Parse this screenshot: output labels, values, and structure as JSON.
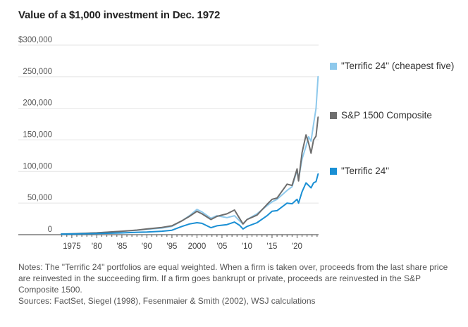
{
  "chart_data": {
    "type": "line",
    "title": "Value of a $1,000 investment in Dec. 1972",
    "xlabel": "",
    "ylabel": "",
    "xlim": [
      1972.9,
      2024.3
    ],
    "ylim": [
      0,
      300000
    ],
    "grid": true,
    "legend_position": "right",
    "y_ticks": [
      {
        "value": 0,
        "label": "0"
      },
      {
        "value": 50000,
        "label": "50,000"
      },
      {
        "value": 100000,
        "label": "100,000"
      },
      {
        "value": 150000,
        "label": "150,000"
      },
      {
        "value": 200000,
        "label": "200,000"
      },
      {
        "value": 250000,
        "label": "250,000"
      },
      {
        "value": 300000,
        "label": "$300,000"
      }
    ],
    "x_ticks": [
      {
        "value": 1975,
        "label": "1975"
      },
      {
        "value": 1980,
        "label": "'80"
      },
      {
        "value": 1985,
        "label": "'85"
      },
      {
        "value": 1990,
        "label": "'90"
      },
      {
        "value": 1995,
        "label": "'95"
      },
      {
        "value": 2000,
        "label": "2000"
      },
      {
        "value": 2005,
        "label": "'05"
      },
      {
        "value": 2010,
        "label": "'10"
      },
      {
        "value": 2015,
        "label": "'15"
      },
      {
        "value": 2020,
        "label": "'20"
      }
    ],
    "series": [
      {
        "name": "\"Terrific 24\" (cheapest five)",
        "color": "#8ec9ec",
        "x": [
          1972.9,
          1975,
          1980,
          1985,
          1988,
          1990,
          1993,
          1995,
          1997,
          1998.5,
          2000,
          2001,
          2002.8,
          2004,
          2006,
          2007.5,
          2008.5,
          2009.2,
          2010,
          2012,
          2014,
          2015,
          2016,
          2018,
          2019,
          2020,
          2020.3,
          2021,
          2021.8,
          2022.3,
          2022.8,
          2023.3,
          2023.8,
          2024.2
        ],
        "values": [
          1000,
          1400,
          2800,
          5200,
          7000,
          8500,
          10500,
          13000,
          22000,
          30000,
          40000,
          36000,
          26000,
          30000,
          27000,
          30000,
          22000,
          17000,
          24000,
          33000,
          46000,
          52000,
          56000,
          70000,
          76000,
          102000,
          88000,
          120000,
          140000,
          155000,
          148000,
          175000,
          200000,
          250000
        ]
      },
      {
        "name": "S&P 1500 Composite",
        "color": "#6e6e6e",
        "x": [
          1972.9,
          1975,
          1980,
          1985,
          1988,
          1990,
          1993,
          1995,
          1997,
          1998.5,
          2000,
          2001,
          2002.8,
          2004,
          2006,
          2007.5,
          2008.5,
          2009.2,
          2010,
          2012,
          2014,
          2015,
          2016,
          2018,
          2019,
          2020,
          2020.3,
          2021,
          2021.8,
          2022.3,
          2022.8,
          2023.3,
          2023.8,
          2024.2
        ],
        "values": [
          1000,
          1300,
          2900,
          5500,
          7300,
          9000,
          11500,
          14000,
          22000,
          29000,
          37000,
          33000,
          24000,
          29000,
          33000,
          39000,
          26000,
          17000,
          24000,
          31000,
          48000,
          56000,
          58000,
          80000,
          78000,
          104000,
          85000,
          130000,
          158000,
          145000,
          129000,
          150000,
          156000,
          186000
        ]
      },
      {
        "name": "\"Terrific 24\"",
        "color": "#1a8fd4",
        "x": [
          1972.9,
          1975,
          1980,
          1985,
          1988,
          1990,
          1993,
          1995,
          1997,
          1998.5,
          2000,
          2001,
          2002.8,
          2004,
          2006,
          2007.5,
          2008.5,
          2009.2,
          2010,
          2012,
          2014,
          2015,
          2016,
          2018,
          2019,
          2020,
          2020.3,
          2021,
          2021.8,
          2022.3,
          2022.8,
          2023.3,
          2023.8,
          2024.2
        ],
        "values": [
          1000,
          1100,
          1800,
          2800,
          3800,
          4200,
          5500,
          7000,
          13000,
          17000,
          19000,
          18000,
          11000,
          14000,
          16000,
          20000,
          15000,
          9000,
          13000,
          19000,
          30000,
          37000,
          38000,
          50000,
          49000,
          56000,
          50000,
          68000,
          82000,
          78000,
          74000,
          82000,
          84000,
          96000
        ]
      }
    ]
  },
  "legend": [
    {
      "label": "\"Terrific 24\" (cheapest five)",
      "color": "#8ec9ec"
    },
    {
      "label": "S&P 1500 Composite",
      "color": "#6e6e6e"
    },
    {
      "label": "\"Terrific 24\"",
      "color": "#1a8fd4"
    }
  ],
  "notes": {
    "text": "Notes: The \"Terrific 24\" portfolios are equal weighted. When a firm is taken over, proceeds from the last share price are reinvested in the succeeding firm. If a firm goes bankrupt or private, proceeds are reinvested in the S&P Composite 1500.",
    "sources": "Sources: FactSet, Siegel (1998), Fesenmaier & Smith (2002), WSJ calculations"
  }
}
